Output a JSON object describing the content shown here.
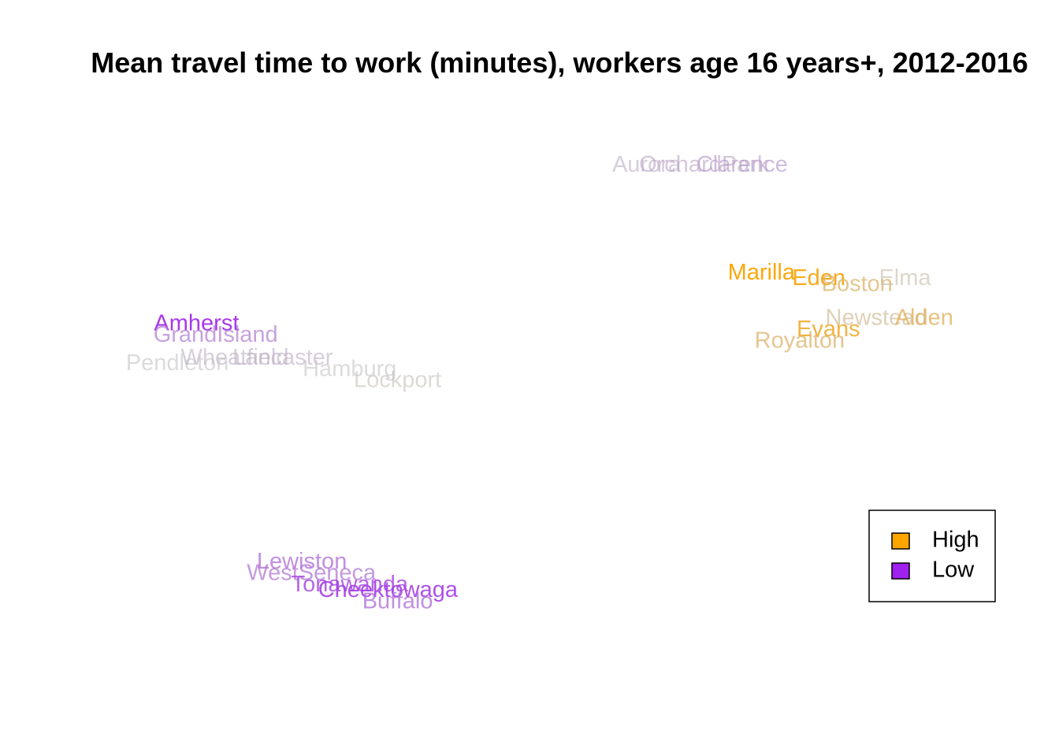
{
  "chart_data": {
    "type": "scatter",
    "title": "Mean travel time to work (minutes), workers age 16 years+, 2012-2016",
    "xlabel": "",
    "ylabel": "",
    "axes_visible": false,
    "xlim": [
      0,
      1
    ],
    "ylim": [
      0,
      1
    ],
    "marker": "text",
    "color_scale": {
      "high_color": "#FFA500",
      "low_color": "#A020F0",
      "mid_color": "#BEBEBE"
    },
    "legend": {
      "position": "right",
      "entries": [
        {
          "label": "High",
          "color": "#FFA500"
        },
        {
          "label": "Low",
          "color": "#A020F0"
        }
      ]
    },
    "points": [
      {
        "label": "Aurora",
        "x": 0.63,
        "y": 0.93,
        "level": 0.45
      },
      {
        "label": "OrchardPark",
        "x": 0.69,
        "y": 0.93,
        "level": 0.42
      },
      {
        "label": "Clarence",
        "x": 0.73,
        "y": 0.93,
        "level": 0.38
      },
      {
        "label": "Marilla",
        "x": 0.75,
        "y": 0.74,
        "level": 0.98
      },
      {
        "label": "Eden",
        "x": 0.81,
        "y": 0.73,
        "level": 0.95
      },
      {
        "label": "Boston",
        "x": 0.85,
        "y": 0.72,
        "level": 0.72
      },
      {
        "label": "Elma",
        "x": 0.9,
        "y": 0.73,
        "level": 0.56
      },
      {
        "label": "Newstead",
        "x": 0.87,
        "y": 0.66,
        "level": 0.62
      },
      {
        "label": "Alden",
        "x": 0.92,
        "y": 0.66,
        "level": 0.76
      },
      {
        "label": "Evans",
        "x": 0.82,
        "y": 0.64,
        "level": 0.88
      },
      {
        "label": "Royalton",
        "x": 0.79,
        "y": 0.62,
        "level": 0.72
      },
      {
        "label": "Amherst",
        "x": 0.16,
        "y": 0.65,
        "level": 0.05
      },
      {
        "label": "GrandIsland",
        "x": 0.18,
        "y": 0.63,
        "level": 0.3
      },
      {
        "label": "Wheatfield",
        "x": 0.2,
        "y": 0.59,
        "level": 0.45
      },
      {
        "label": "Lancaster",
        "x": 0.25,
        "y": 0.59,
        "level": 0.45
      },
      {
        "label": "Pendleton",
        "x": 0.14,
        "y": 0.58,
        "level": 0.5
      },
      {
        "label": "Hamburg",
        "x": 0.32,
        "y": 0.57,
        "level": 0.5
      },
      {
        "label": "Lockport",
        "x": 0.37,
        "y": 0.55,
        "level": 0.52
      },
      {
        "label": "Lewiston",
        "x": 0.27,
        "y": 0.23,
        "level": 0.25
      },
      {
        "label": "WestSeneca",
        "x": 0.28,
        "y": 0.21,
        "level": 0.28
      },
      {
        "label": "Tonawanda",
        "x": 0.32,
        "y": 0.19,
        "level": 0.15
      },
      {
        "label": "Cheektowaga",
        "x": 0.36,
        "y": 0.18,
        "level": 0.1
      },
      {
        "label": "Buffalo",
        "x": 0.37,
        "y": 0.16,
        "level": 0.25
      }
    ]
  }
}
